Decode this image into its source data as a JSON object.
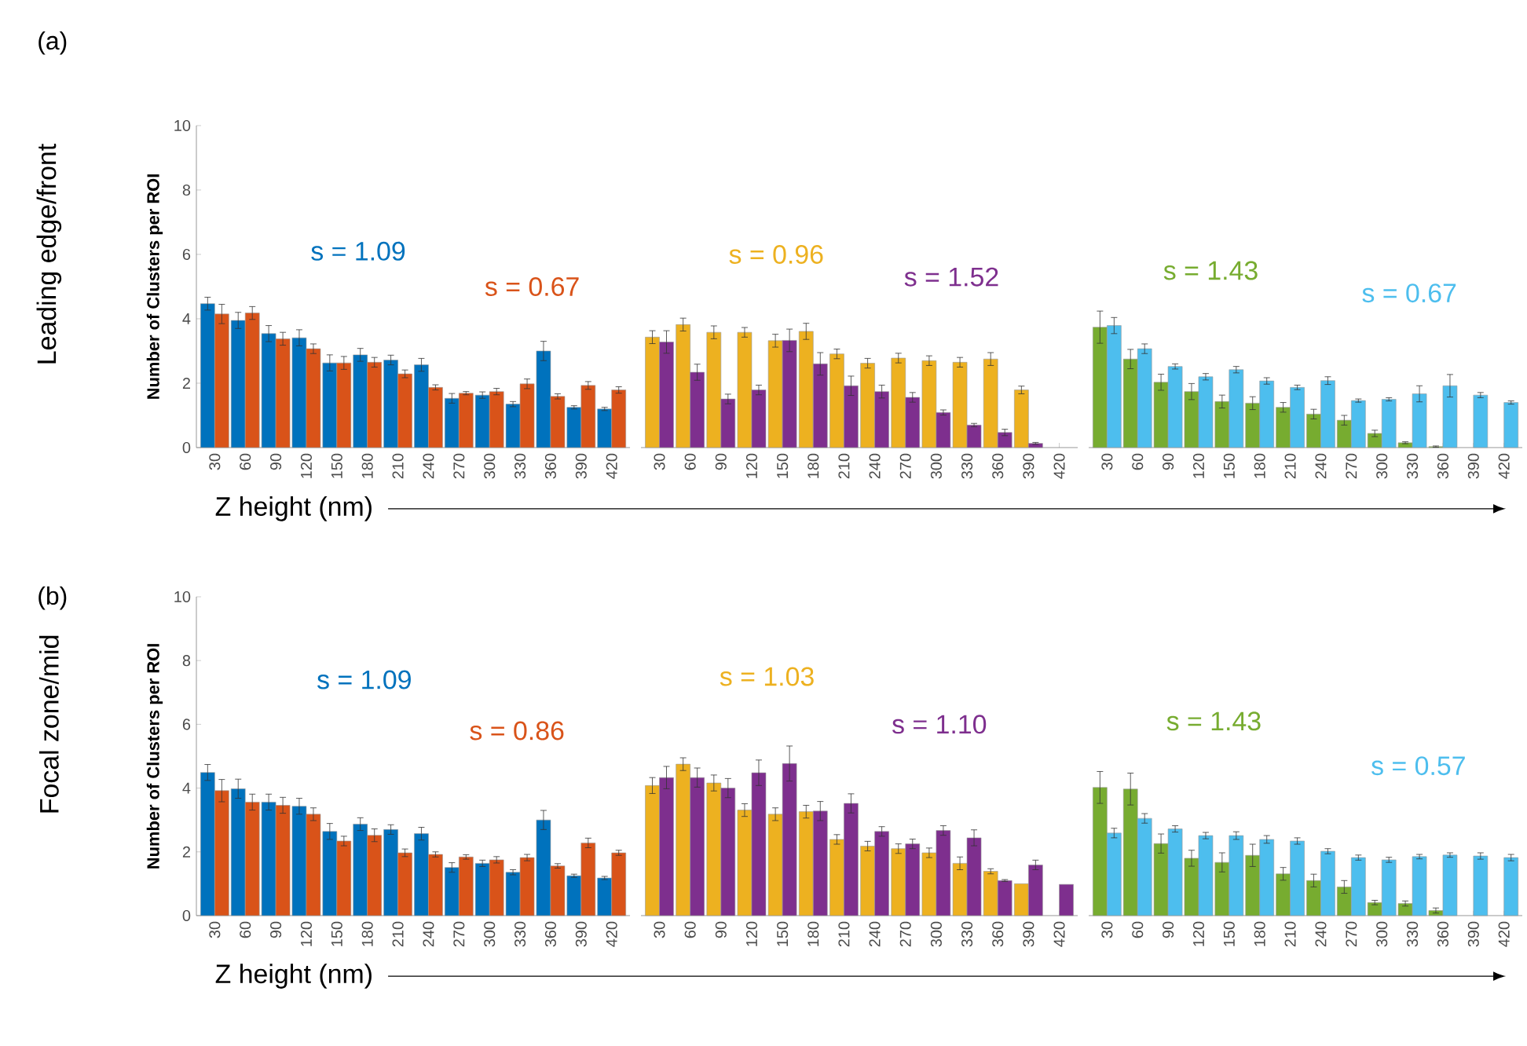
{
  "chart_data": [
    {
      "type": "bar",
      "title": "(a)",
      "ylabel": "Number of Clusters per ROI",
      "xlabel": "Z height (nm)",
      "annotations": [
        "s = 1.09",
        "s = 0.67",
        "Leading edge/front"
      ],
      "categories": [
        "30",
        "60",
        "90",
        "120",
        "150",
        "180",
        "210",
        "240",
        "270",
        "300",
        "330",
        "360",
        "390",
        "420"
      ],
      "ylim": [
        0,
        10
      ],
      "yticks": [
        0,
        2,
        4,
        6,
        8,
        10
      ],
      "series": [
        {
          "color": "#0072bd",
          "values": [
            4.47,
            3.95,
            3.54,
            3.41,
            2.63,
            2.88,
            2.72,
            2.57,
            1.53,
            1.63,
            1.35,
            3.0,
            1.25,
            1.2
          ],
          "errors": [
            0.2,
            0.25,
            0.25,
            0.25,
            0.25,
            0.2,
            0.15,
            0.2,
            0.15,
            0.1,
            0.08,
            0.3,
            0.05,
            0.05
          ]
        },
        {
          "color": "#d95319",
          "values": [
            4.15,
            4.18,
            3.38,
            3.07,
            2.63,
            2.65,
            2.29,
            1.87,
            1.69,
            1.74,
            1.98,
            1.59,
            1.93,
            1.79
          ],
          "errors": [
            0.3,
            0.2,
            0.2,
            0.15,
            0.2,
            0.15,
            0.12,
            0.08,
            0.05,
            0.1,
            0.15,
            0.08,
            0.12,
            0.1
          ]
        }
      ]
    },
    {
      "type": "bar",
      "annotations": [
        "s = 0.96",
        "s = 1.52"
      ],
      "categories": [
        "30",
        "60",
        "90",
        "120",
        "150",
        "180",
        "210",
        "240",
        "270",
        "300",
        "330",
        "360",
        "390",
        "420"
      ],
      "ylim": [
        0,
        10
      ],
      "yticks": [
        0,
        2,
        4,
        6,
        8,
        10
      ],
      "tick_labels": "x",
      "series": [
        {
          "color": "#edb120",
          "values": [
            3.43,
            3.82,
            3.58,
            3.58,
            3.32,
            3.61,
            2.91,
            2.62,
            2.78,
            2.7,
            2.65,
            2.75,
            1.79,
            null
          ],
          "errors": [
            0.2,
            0.2,
            0.2,
            0.15,
            0.2,
            0.25,
            0.15,
            0.15,
            0.15,
            0.15,
            0.15,
            0.2,
            0.12,
            null
          ]
        },
        {
          "color": "#7e2f8e",
          "values": [
            3.28,
            2.34,
            1.51,
            1.79,
            3.33,
            2.6,
            1.92,
            1.74,
            1.56,
            1.09,
            0.7,
            0.47,
            0.13,
            null
          ],
          "errors": [
            0.35,
            0.25,
            0.15,
            0.15,
            0.35,
            0.35,
            0.3,
            0.2,
            0.15,
            0.08,
            0.05,
            0.1,
            0.03,
            null
          ]
        }
      ]
    },
    {
      "type": "bar",
      "annotations": [
        "s = 1.43",
        "s = 0.67"
      ],
      "categories": [
        "30",
        "60",
        "90",
        "120",
        "150",
        "180",
        "210",
        "240",
        "270",
        "300",
        "330",
        "360",
        "390",
        "420"
      ],
      "ylim": [
        0,
        10
      ],
      "yticks": [
        0,
        2,
        4,
        6,
        8,
        10
      ],
      "tick_labels": "x",
      "series": [
        {
          "color": "#77ac30",
          "values": [
            3.74,
            2.75,
            2.03,
            1.74,
            1.43,
            1.38,
            1.25,
            1.04,
            0.85,
            0.44,
            0.15,
            0.03,
            null,
            null
          ],
          "errors": [
            0.5,
            0.3,
            0.25,
            0.25,
            0.2,
            0.2,
            0.15,
            0.15,
            0.15,
            0.1,
            0.03,
            0.02,
            null,
            null
          ]
        },
        {
          "color": "#4dbeee",
          "values": [
            3.79,
            3.07,
            2.52,
            2.2,
            2.42,
            2.07,
            1.87,
            2.08,
            1.46,
            1.5,
            1.67,
            1.92,
            1.63,
            1.4
          ],
          "errors": [
            0.25,
            0.15,
            0.08,
            0.1,
            0.1,
            0.1,
            0.07,
            0.12,
            0.05,
            0.05,
            0.25,
            0.35,
            0.08,
            0.05
          ]
        }
      ]
    },
    {
      "type": "bar",
      "title": "(b)",
      "ylabel": "Number of Clusters per ROI",
      "xlabel": "Z height (nm)",
      "annotations": [
        "s = 1.09",
        "s = 0.86",
        "Focal zone/mid"
      ],
      "categories": [
        "30",
        "60",
        "90",
        "120",
        "150",
        "180",
        "210",
        "240",
        "270",
        "300",
        "330",
        "360",
        "390",
        "420"
      ],
      "ylim": [
        0,
        10
      ],
      "yticks": [
        0,
        2,
        4,
        6,
        8,
        10
      ],
      "series": [
        {
          "color": "#0072bd",
          "values": [
            4.49,
            3.98,
            3.56,
            3.43,
            2.64,
            2.87,
            2.7,
            2.57,
            1.51,
            1.64,
            1.36,
            3.0,
            1.25,
            1.18
          ],
          "errors": [
            0.25,
            0.3,
            0.25,
            0.25,
            0.25,
            0.2,
            0.15,
            0.2,
            0.15,
            0.1,
            0.08,
            0.3,
            0.05,
            0.05
          ]
        },
        {
          "color": "#d95319",
          "values": [
            3.92,
            3.56,
            3.46,
            3.18,
            2.34,
            2.52,
            1.97,
            1.92,
            1.84,
            1.75,
            1.82,
            1.56,
            2.28,
            1.97
          ],
          "errors": [
            0.35,
            0.25,
            0.25,
            0.2,
            0.15,
            0.2,
            0.12,
            0.08,
            0.07,
            0.1,
            0.1,
            0.07,
            0.15,
            0.08
          ]
        }
      ]
    },
    {
      "type": "bar",
      "annotations": [
        "s = 1.03",
        "s = 1.10"
      ],
      "categories": [
        "30",
        "60",
        "90",
        "120",
        "150",
        "180",
        "210",
        "240",
        "270",
        "300",
        "330",
        "360",
        "390",
        "420"
      ],
      "ylim": [
        0,
        10
      ],
      "yticks": [
        0,
        2,
        4,
        6,
        8,
        10
      ],
      "tick_labels": "x",
      "series": [
        {
          "color": "#edb120",
          "values": [
            4.08,
            4.75,
            4.16,
            3.31,
            3.18,
            3.26,
            2.39,
            2.18,
            2.1,
            1.97,
            1.64,
            1.39,
            1.0,
            null
          ],
          "errors": [
            0.25,
            0.2,
            0.25,
            0.2,
            0.2,
            0.2,
            0.15,
            0.15,
            0.15,
            0.15,
            0.2,
            0.08,
            null,
            null
          ]
        },
        {
          "color": "#7e2f8e",
          "values": [
            4.33,
            4.33,
            4.0,
            4.48,
            4.77,
            3.28,
            3.52,
            2.64,
            2.25,
            2.67,
            2.44,
            1.1,
            1.59,
            0.98
          ],
          "errors": [
            0.35,
            0.3,
            0.3,
            0.4,
            0.55,
            0.3,
            0.3,
            0.15,
            0.15,
            0.15,
            0.25,
            0.03,
            0.15,
            null
          ]
        }
      ]
    },
    {
      "type": "bar",
      "annotations": [
        "s = 1.43",
        "s = 0.57"
      ],
      "categories": [
        "30",
        "60",
        "90",
        "120",
        "150",
        "180",
        "210",
        "240",
        "270",
        "300",
        "330",
        "360",
        "390",
        "420"
      ],
      "ylim": [
        0,
        10
      ],
      "yticks": [
        0,
        2,
        4,
        6,
        8,
        10
      ],
      "tick_labels": "x",
      "series": [
        {
          "color": "#77ac30",
          "values": [
            4.02,
            3.97,
            2.26,
            1.8,
            1.67,
            1.89,
            1.31,
            1.1,
            0.9,
            0.41,
            0.38,
            0.16,
            null,
            null
          ],
          "errors": [
            0.5,
            0.5,
            0.3,
            0.25,
            0.3,
            0.35,
            0.2,
            0.2,
            0.2,
            0.07,
            0.08,
            0.08,
            null,
            null
          ]
        },
        {
          "color": "#4dbeee",
          "values": [
            2.59,
            3.05,
            2.72,
            2.51,
            2.51,
            2.39,
            2.34,
            2.02,
            1.82,
            1.75,
            1.85,
            1.9,
            1.87,
            1.82
          ],
          "errors": [
            0.15,
            0.15,
            0.1,
            0.1,
            0.12,
            0.12,
            0.1,
            0.08,
            0.08,
            0.08,
            0.07,
            0.07,
            0.1,
            0.1
          ]
        }
      ]
    }
  ]
}
